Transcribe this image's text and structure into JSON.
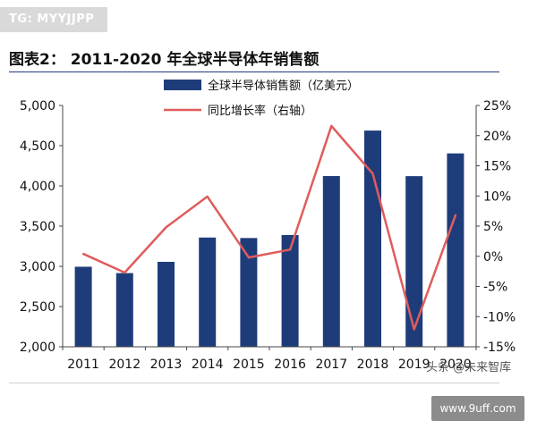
{
  "tag": "TG: MYYJJPP",
  "watermark": "头条 @未来智库",
  "site": "www.9uff.com",
  "colors": {
    "bar": "#1f3c7a",
    "line": "#e15c5c"
  },
  "chart_data": {
    "type": "bar",
    "title": "图表2：   2011-2020 年全球半导体年销售额",
    "categories": [
      "2011",
      "2012",
      "2013",
      "2014",
      "2015",
      "2016",
      "2017",
      "2018",
      "2019",
      "2020"
    ],
    "series": [
      {
        "name": "全球半导体销售额（亿美元）",
        "type": "bar",
        "axis": "left",
        "values": [
          2995,
          2916,
          3056,
          3358,
          3352,
          3389,
          4122,
          4688,
          4121,
          4404
        ]
      },
      {
        "name": "同比增长率（右轴）",
        "type": "line",
        "axis": "right",
        "values": [
          0.4,
          -2.7,
          4.8,
          9.9,
          -0.2,
          1.1,
          21.6,
          13.7,
          -12.1,
          6.8
        ]
      }
    ],
    "ylim": [
      2000,
      5000
    ],
    "yticks": [
      "2,000",
      "2,500",
      "3,000",
      "3,500",
      "4,000",
      "4,500",
      "5,000"
    ],
    "y2lim": [
      -15,
      25
    ],
    "y2ticks": [
      "-15%",
      "-10%",
      "-5%",
      "0%",
      "5%",
      "10%",
      "15%",
      "20%",
      "25%"
    ],
    "legend": "top-center",
    "grid": false
  }
}
